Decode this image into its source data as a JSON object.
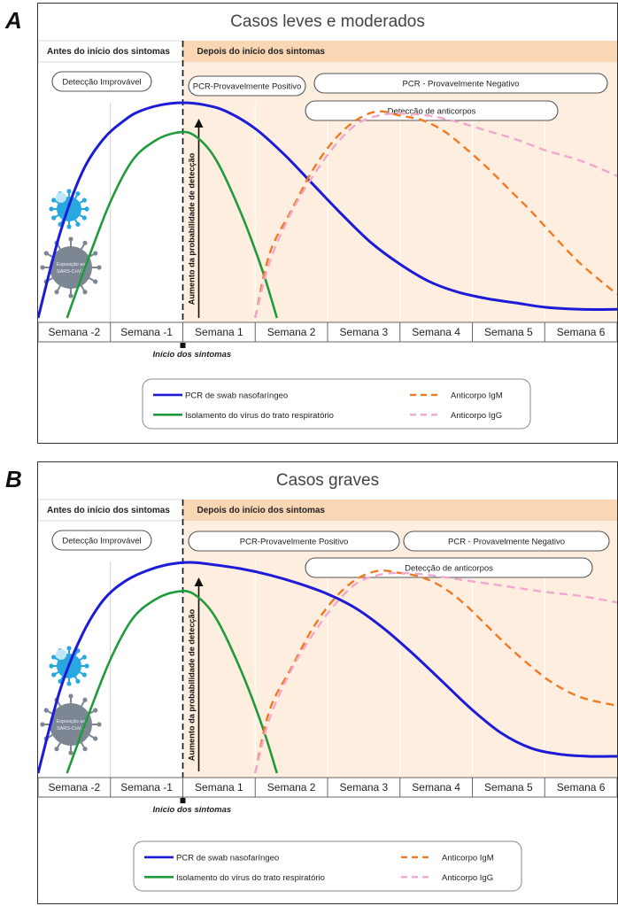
{
  "panels": [
    {
      "letter": "A",
      "title": "Casos leves e moderados",
      "phase_before": "Antes do início dos sintomas",
      "phase_after": "Depois do início dos sintomas",
      "pill_unlikely": "Detecção Improvável",
      "pill_positive": "PCR-Provavelmente Positivo",
      "pill_negative": "PCR - Provavelmente Negativo",
      "pill_antibodies": "Detecção de anticorpos",
      "arrow_label": "Aumento da probabilidade de detecção",
      "virus_label_1": "Exposição ao",
      "virus_label_2": "SARS-CoV-2",
      "onset_label": "Início dos sintomas",
      "weeks": [
        "Semana -2",
        "Semana -1",
        "Semana 1",
        "Semana 2",
        "Semana 3",
        "Semana 4",
        "Semana 5",
        "Semana 6"
      ],
      "legend": {
        "pcr": "PCR de swab nasofaríngeo",
        "isolation": "Isolamento do vírus do trato respiratório",
        "igm": "Anticorpo IgM",
        "igg": "Anticorpo IgG"
      }
    },
    {
      "letter": "B",
      "title": "Casos graves",
      "phase_before": "Antes do início dos sintomas",
      "phase_after": "Depois do início dos sintomas",
      "pill_unlikely": "Detecção Improvável",
      "pill_positive": "PCR-Provavelmente Positivo",
      "pill_negative": "PCR - Provavelmente Negativo",
      "pill_antibodies": "Detecção de anticorpos",
      "arrow_label": "Aumento da probabilidade de detecção",
      "virus_label_1": "Exposição ao",
      "virus_label_2": "SARS-CoV-2",
      "onset_label": "Início dos sintomas",
      "weeks": [
        "Semana -2",
        "Semana -1",
        "Semana 1",
        "Semana 2",
        "Semana 3",
        "Semana 4",
        "Semana 5",
        "Semana 6"
      ],
      "legend": {
        "pcr": "PCR de swab nasofaríngeo",
        "isolation": "Isolamento do vírus do trato respiratório",
        "igm": "Anticorpo IgM",
        "igg": "Anticorpo IgG"
      }
    }
  ],
  "colors": {
    "pcr": "#1b1bd8",
    "isolation": "#1f9b3c",
    "igm": "#f07a22",
    "igg": "#f2a7cf",
    "after_bg": "#fdeee0",
    "after_header": "#f9d6b4",
    "virus_blue": "#29a8e0",
    "virus_gray": "#7d8794"
  },
  "chart_data": [
    {
      "type": "line",
      "title": "Casos leves e moderados",
      "xlabel": "",
      "ylabel": "Aumento da probabilidade de detecção",
      "x_categories": [
        "Semana -2",
        "Semana -1",
        "Semana 1",
        "Semana 2",
        "Semana 3",
        "Semana 4",
        "Semana 5",
        "Semana 6"
      ],
      "xlim": [
        -2,
        6
      ],
      "ylim": [
        0,
        1
      ],
      "annotations": [
        "Início dos sintomas"
      ],
      "series": [
        {
          "name": "PCR de swab nasofaríngeo",
          "style": "solid",
          "x": [
            -2.0,
            -1.7,
            -1.4,
            -1.1,
            -0.8,
            -0.6,
            -0.3,
            0.0,
            0.3,
            0.6,
            1.0,
            1.4,
            1.8,
            2.2,
            2.6,
            3.0,
            3.4,
            3.8,
            4.2,
            4.6,
            5.0,
            5.5,
            6.0
          ],
          "y": [
            0.0,
            0.39,
            0.67,
            0.83,
            0.92,
            0.96,
            0.99,
            1.0,
            0.99,
            0.96,
            0.88,
            0.76,
            0.62,
            0.48,
            0.35,
            0.25,
            0.17,
            0.12,
            0.09,
            0.07,
            0.05,
            0.04,
            0.04
          ]
        },
        {
          "name": "Isolamento do vírus do trato respiratório",
          "style": "solid",
          "x": [
            -1.6,
            -1.3,
            -1.0,
            -0.7,
            -0.4,
            -0.1,
            0.15,
            0.45,
            0.8,
            1.1,
            1.3
          ],
          "y": [
            0.0,
            0.28,
            0.54,
            0.73,
            0.82,
            0.86,
            0.85,
            0.74,
            0.49,
            0.22,
            0.0
          ]
        },
        {
          "name": "Anticorpo IgM",
          "style": "dashed",
          "x": [
            1.0,
            1.2,
            1.5,
            1.8,
            2.1,
            2.4,
            2.7,
            3.0,
            3.3,
            3.6,
            3.9,
            4.2,
            4.5,
            4.8,
            5.1,
            5.5,
            6.0
          ],
          "y": [
            0.0,
            0.3,
            0.5,
            0.69,
            0.83,
            0.92,
            0.96,
            0.94,
            0.92,
            0.87,
            0.79,
            0.7,
            0.6,
            0.5,
            0.39,
            0.25,
            0.11
          ]
        },
        {
          "name": "Anticorpo IgG",
          "style": "dashed",
          "x": [
            1.0,
            1.2,
            1.5,
            1.8,
            2.1,
            2.4,
            2.7,
            3.0,
            3.4,
            3.8,
            4.2,
            4.6,
            5.0,
            5.5,
            6.0
          ],
          "y": [
            0.0,
            0.26,
            0.49,
            0.66,
            0.8,
            0.9,
            0.94,
            0.95,
            0.94,
            0.91,
            0.87,
            0.83,
            0.78,
            0.73,
            0.66
          ]
        }
      ]
    },
    {
      "type": "line",
      "title": "Casos graves",
      "xlabel": "",
      "ylabel": "Aumento da probabilidade de detecção",
      "x_categories": [
        "Semana -2",
        "Semana -1",
        "Semana 1",
        "Semana 2",
        "Semana 3",
        "Semana 4",
        "Semana 5",
        "Semana 6"
      ],
      "xlim": [
        -2,
        6
      ],
      "ylim": [
        0,
        1
      ],
      "annotations": [
        "Início dos sintomas"
      ],
      "series": [
        {
          "name": "PCR de swab nasofaríngeo",
          "style": "solid",
          "x": [
            -2.0,
            -1.7,
            -1.4,
            -1.1,
            -0.8,
            -0.5,
            -0.2,
            0.1,
            0.4,
            0.8,
            1.2,
            1.6,
            2.0,
            2.4,
            2.8,
            3.2,
            3.6,
            4.0,
            4.4,
            4.8,
            5.2,
            5.6,
            6.0
          ],
          "y": [
            0.0,
            0.39,
            0.65,
            0.82,
            0.91,
            0.96,
            0.99,
            1.0,
            0.99,
            0.97,
            0.94,
            0.9,
            0.85,
            0.78,
            0.68,
            0.56,
            0.43,
            0.3,
            0.19,
            0.12,
            0.09,
            0.08,
            0.08
          ]
        },
        {
          "name": "Isolamento do vírus do trato respiratório",
          "style": "solid",
          "x": [
            -1.6,
            -1.3,
            -1.0,
            -0.7,
            -0.4,
            -0.1,
            0.15,
            0.45,
            0.8,
            1.1,
            1.3
          ],
          "y": [
            0.0,
            0.28,
            0.54,
            0.73,
            0.82,
            0.86,
            0.85,
            0.74,
            0.49,
            0.22,
            0.0
          ]
        },
        {
          "name": "Anticorpo IgM",
          "style": "dashed",
          "x": [
            1.0,
            1.2,
            1.5,
            1.8,
            2.1,
            2.4,
            2.7,
            3.0,
            3.3,
            3.6,
            3.9,
            4.2,
            4.5,
            4.8,
            5.1,
            5.5,
            6.0
          ],
          "y": [
            0.0,
            0.3,
            0.5,
            0.69,
            0.83,
            0.92,
            0.96,
            0.95,
            0.93,
            0.88,
            0.8,
            0.7,
            0.6,
            0.51,
            0.43,
            0.36,
            0.32
          ]
        },
        {
          "name": "Anticorpo IgG",
          "style": "dashed",
          "x": [
            1.0,
            1.2,
            1.5,
            1.8,
            2.1,
            2.4,
            2.7,
            3.0,
            3.4,
            3.8,
            4.2,
            4.6,
            5.0,
            5.5,
            6.0
          ],
          "y": [
            0.0,
            0.26,
            0.49,
            0.66,
            0.8,
            0.9,
            0.94,
            0.95,
            0.94,
            0.92,
            0.9,
            0.88,
            0.86,
            0.84,
            0.81
          ]
        }
      ]
    }
  ]
}
